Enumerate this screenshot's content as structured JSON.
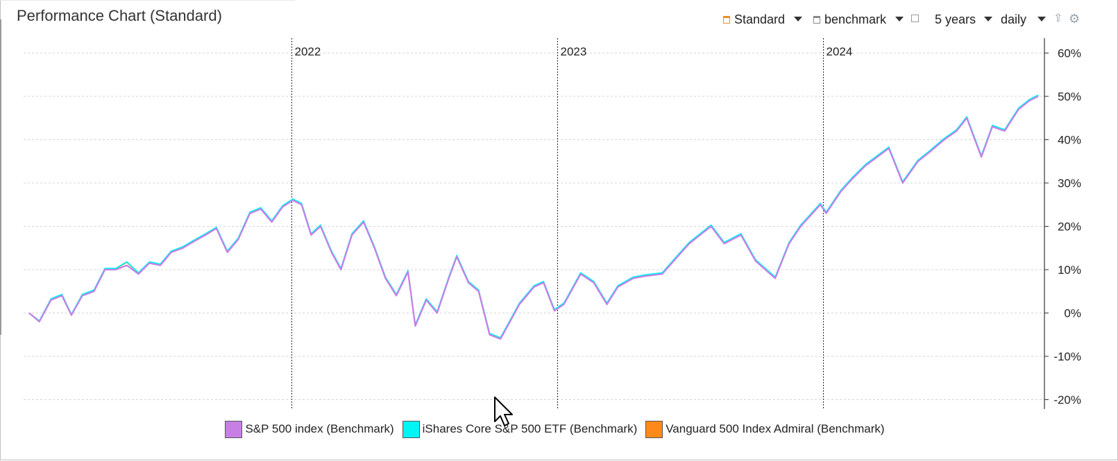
{
  "header": {
    "title": "Performance Chart (Standard)"
  },
  "toolbar": {
    "chart_type": "Standard",
    "compare": "benchmark",
    "period": "5 years",
    "interval": "daily"
  },
  "colors": {
    "sp500": "#c77fe6",
    "ishares": "#00f5f5",
    "vanguard": "#ff8a1a"
  },
  "chart_data": {
    "type": "line",
    "title": "Performance Chart (Standard)",
    "x_range": [
      "2021-01-06",
      "2024-10-22"
    ],
    "ylim": [
      -22,
      62
    ],
    "y_ticks": [
      60,
      50,
      40,
      30,
      20,
      10,
      0,
      -10,
      -20
    ],
    "y_tick_labels": [
      "60%",
      "50%",
      "40%",
      "30%",
      "20%",
      "10%",
      "0%",
      "-10%",
      "-20%"
    ],
    "year_markers": [
      {
        "date": "2022-01-01",
        "label": "2022"
      },
      {
        "date": "2023-01-01",
        "label": "2023"
      },
      {
        "date": "2024-01-01",
        "label": "2024"
      }
    ],
    "legend_position": "bottom",
    "grid": true,
    "series": [
      {
        "name": "S&P 500 index (Benchmark)",
        "color": "#c77fe6",
        "points": [
          [
            "2021-01-06",
            0
          ],
          [
            "2021-01-20",
            -2
          ],
          [
            "2021-02-05",
            3
          ],
          [
            "2021-02-20",
            4
          ],
          [
            "2021-03-05",
            -0.5
          ],
          [
            "2021-03-20",
            4
          ],
          [
            "2021-04-05",
            5
          ],
          [
            "2021-04-20",
            10
          ],
          [
            "2021-05-05",
            10
          ],
          [
            "2021-05-20",
            11
          ],
          [
            "2021-06-05",
            9
          ],
          [
            "2021-06-20",
            11.5
          ],
          [
            "2021-07-05",
            11
          ],
          [
            "2021-07-20",
            14
          ],
          [
            "2021-08-05",
            15
          ],
          [
            "2021-08-20",
            16.5
          ],
          [
            "2021-09-05",
            18
          ],
          [
            "2021-09-20",
            19.5
          ],
          [
            "2021-10-05",
            14
          ],
          [
            "2021-10-20",
            17
          ],
          [
            "2021-11-05",
            23
          ],
          [
            "2021-11-20",
            24
          ],
          [
            "2021-12-05",
            21
          ],
          [
            "2021-12-20",
            24.5
          ],
          [
            "2022-01-03",
            26
          ],
          [
            "2022-01-15",
            25
          ],
          [
            "2022-01-28",
            18
          ],
          [
            "2022-02-10",
            20
          ],
          [
            "2022-02-25",
            14
          ],
          [
            "2022-03-10",
            10
          ],
          [
            "2022-03-25",
            18
          ],
          [
            "2022-04-10",
            21
          ],
          [
            "2022-04-25",
            15
          ],
          [
            "2022-05-10",
            8
          ],
          [
            "2022-05-25",
            4
          ],
          [
            "2022-06-10",
            9.5
          ],
          [
            "2022-06-20",
            -3
          ],
          [
            "2022-07-05",
            3
          ],
          [
            "2022-07-20",
            0
          ],
          [
            "2022-08-05",
            8
          ],
          [
            "2022-08-16",
            13
          ],
          [
            "2022-09-01",
            7
          ],
          [
            "2022-09-15",
            5
          ],
          [
            "2022-09-30",
            -5
          ],
          [
            "2022-10-15",
            -6
          ],
          [
            "2022-10-28",
            -2
          ],
          [
            "2022-11-10",
            2
          ],
          [
            "2022-11-30",
            6
          ],
          [
            "2022-12-13",
            7
          ],
          [
            "2022-12-28",
            0.5
          ],
          [
            "2023-01-10",
            2
          ],
          [
            "2023-02-02",
            9
          ],
          [
            "2023-02-20",
            7
          ],
          [
            "2023-03-10",
            2
          ],
          [
            "2023-03-25",
            6
          ],
          [
            "2023-04-15",
            8
          ],
          [
            "2023-05-01",
            8.5
          ],
          [
            "2023-05-25",
            9
          ],
          [
            "2023-06-15",
            13
          ],
          [
            "2023-07-01",
            16
          ],
          [
            "2023-07-31",
            20
          ],
          [
            "2023-08-18",
            16
          ],
          [
            "2023-09-10",
            18
          ],
          [
            "2023-09-30",
            12
          ],
          [
            "2023-10-27",
            8
          ],
          [
            "2023-11-15",
            16
          ],
          [
            "2023-12-01",
            20
          ],
          [
            "2023-12-28",
            25
          ],
          [
            "2024-01-05",
            23
          ],
          [
            "2024-01-25",
            28
          ],
          [
            "2024-02-10",
            31
          ],
          [
            "2024-02-28",
            34
          ],
          [
            "2024-03-15",
            36
          ],
          [
            "2024-03-31",
            38
          ],
          [
            "2024-04-19",
            30
          ],
          [
            "2024-05-10",
            35
          ],
          [
            "2024-05-25",
            37
          ],
          [
            "2024-06-15",
            40
          ],
          [
            "2024-07-02",
            42
          ],
          [
            "2024-07-16",
            45
          ],
          [
            "2024-08-05",
            36
          ],
          [
            "2024-08-20",
            43
          ],
          [
            "2024-09-06",
            42
          ],
          [
            "2024-09-25",
            47
          ],
          [
            "2024-10-10",
            49
          ],
          [
            "2024-10-22",
            50
          ]
        ]
      },
      {
        "name": "iShares Core S&P 500 ETF (Benchmark)",
        "color": "#00f5f5",
        "points": [
          [
            "2021-01-06",
            0
          ],
          [
            "2021-01-20",
            -1.8
          ],
          [
            "2021-02-05",
            3.3
          ],
          [
            "2021-02-20",
            4.3
          ],
          [
            "2021-03-05",
            -0.3
          ],
          [
            "2021-03-20",
            4.3
          ],
          [
            "2021-04-05",
            5.3
          ],
          [
            "2021-04-20",
            10.3
          ],
          [
            "2021-05-05",
            10.3
          ],
          [
            "2021-05-20",
            11.8
          ],
          [
            "2021-06-05",
            9.3
          ],
          [
            "2021-06-20",
            11.8
          ],
          [
            "2021-07-05",
            11.3
          ],
          [
            "2021-07-20",
            14.3
          ],
          [
            "2021-08-05",
            15.3
          ],
          [
            "2021-08-20",
            16.8
          ],
          [
            "2021-09-05",
            18.3
          ],
          [
            "2021-09-20",
            19.8
          ],
          [
            "2021-10-05",
            14.3
          ],
          [
            "2021-10-20",
            17.3
          ],
          [
            "2021-11-05",
            23.3
          ],
          [
            "2021-11-20",
            24.3
          ],
          [
            "2021-12-05",
            21.3
          ],
          [
            "2021-12-20",
            24.8
          ],
          [
            "2022-01-03",
            26.3
          ],
          [
            "2022-01-15",
            25.3
          ],
          [
            "2022-01-28",
            18.3
          ],
          [
            "2022-02-10",
            20.3
          ],
          [
            "2022-02-25",
            14.3
          ],
          [
            "2022-03-10",
            10.3
          ],
          [
            "2022-03-25",
            18.3
          ],
          [
            "2022-04-10",
            21.3
          ],
          [
            "2022-04-25",
            15.3
          ],
          [
            "2022-05-10",
            8.3
          ],
          [
            "2022-05-25",
            4.3
          ],
          [
            "2022-06-10",
            9.8
          ],
          [
            "2022-06-20",
            -2.7
          ],
          [
            "2022-07-05",
            3.3
          ],
          [
            "2022-07-20",
            0.3
          ],
          [
            "2022-08-05",
            8.3
          ],
          [
            "2022-08-16",
            13.3
          ],
          [
            "2022-09-01",
            7.3
          ],
          [
            "2022-09-15",
            5.3
          ],
          [
            "2022-09-30",
            -4.7
          ],
          [
            "2022-10-15",
            -5.7
          ],
          [
            "2022-10-28",
            -1.7
          ],
          [
            "2022-11-10",
            2.3
          ],
          [
            "2022-11-30",
            6.3
          ],
          [
            "2022-12-13",
            7.3
          ],
          [
            "2022-12-28",
            0.8
          ],
          [
            "2023-01-10",
            2.3
          ],
          [
            "2023-02-02",
            9.3
          ],
          [
            "2023-02-20",
            7.3
          ],
          [
            "2023-03-10",
            2.3
          ],
          [
            "2023-03-25",
            6.3
          ],
          [
            "2023-04-15",
            8.3
          ],
          [
            "2023-05-01",
            8.8
          ],
          [
            "2023-05-25",
            9.3
          ],
          [
            "2023-06-15",
            13.3
          ],
          [
            "2023-07-01",
            16.3
          ],
          [
            "2023-07-31",
            20.3
          ],
          [
            "2023-08-18",
            16.3
          ],
          [
            "2023-09-10",
            18.3
          ],
          [
            "2023-09-30",
            12.3
          ],
          [
            "2023-10-27",
            8.3
          ],
          [
            "2023-11-15",
            16.3
          ],
          [
            "2023-12-01",
            20.3
          ],
          [
            "2023-12-28",
            25.3
          ],
          [
            "2024-01-05",
            23.3
          ],
          [
            "2024-01-25",
            28.3
          ],
          [
            "2024-02-10",
            31.3
          ],
          [
            "2024-02-28",
            34.3
          ],
          [
            "2024-03-15",
            36.3
          ],
          [
            "2024-03-31",
            38.3
          ],
          [
            "2024-04-19",
            30.3
          ],
          [
            "2024-05-10",
            35.3
          ],
          [
            "2024-05-25",
            37.3
          ],
          [
            "2024-06-15",
            40.3
          ],
          [
            "2024-07-02",
            42.3
          ],
          [
            "2024-07-16",
            45.3
          ],
          [
            "2024-08-05",
            36.3
          ],
          [
            "2024-08-20",
            43.3
          ],
          [
            "2024-09-06",
            42.3
          ],
          [
            "2024-09-25",
            47.3
          ],
          [
            "2024-10-10",
            49.3
          ],
          [
            "2024-10-22",
            50.3
          ]
        ]
      },
      {
        "name": "Vanguard 500 Index Admiral (Benchmark)",
        "color": "#ff8a1a",
        "points": [
          [
            "2021-01-06",
            0
          ],
          [
            "2021-01-20",
            -1.9
          ],
          [
            "2021-02-05",
            3.2
          ],
          [
            "2021-02-20",
            4.2
          ],
          [
            "2021-03-05",
            -0.4
          ],
          [
            "2021-03-20",
            4.2
          ],
          [
            "2021-04-05",
            5.2
          ],
          [
            "2021-04-20",
            10.2
          ],
          [
            "2021-05-05",
            10.2
          ],
          [
            "2021-05-20",
            11.7
          ],
          [
            "2021-06-05",
            9.2
          ],
          [
            "2021-06-20",
            11.7
          ],
          [
            "2021-07-05",
            11.2
          ],
          [
            "2021-07-20",
            14.2
          ],
          [
            "2021-08-05",
            15.2
          ],
          [
            "2021-08-20",
            16.7
          ],
          [
            "2021-09-05",
            18.2
          ],
          [
            "2021-09-20",
            19.7
          ],
          [
            "2021-10-05",
            14.2
          ],
          [
            "2021-10-20",
            17.2
          ],
          [
            "2021-11-05",
            23.2
          ],
          [
            "2021-11-20",
            24.2
          ],
          [
            "2021-12-05",
            21.2
          ],
          [
            "2021-12-20",
            24.7
          ],
          [
            "2022-01-03",
            26.2
          ],
          [
            "2022-01-15",
            25.2
          ],
          [
            "2022-01-28",
            18.2
          ],
          [
            "2022-02-10",
            20.2
          ],
          [
            "2022-02-25",
            14.2
          ],
          [
            "2022-03-10",
            10.2
          ],
          [
            "2022-03-25",
            18.2
          ],
          [
            "2022-04-10",
            21.2
          ],
          [
            "2022-04-25",
            15.2
          ],
          [
            "2022-05-10",
            8.2
          ],
          [
            "2022-05-25",
            4.2
          ],
          [
            "2022-06-10",
            9.7
          ],
          [
            "2022-06-20",
            -2.8
          ],
          [
            "2022-07-05",
            3.2
          ],
          [
            "2022-07-20",
            0.2
          ],
          [
            "2022-08-05",
            8.2
          ],
          [
            "2022-08-16",
            13.2
          ],
          [
            "2022-09-01",
            7.2
          ],
          [
            "2022-09-15",
            5.2
          ],
          [
            "2022-09-30",
            -4.8
          ],
          [
            "2022-10-15",
            -5.8
          ],
          [
            "2022-10-28",
            -1.8
          ],
          [
            "2022-11-10",
            2.2
          ],
          [
            "2022-11-30",
            6.2
          ],
          [
            "2022-12-13",
            7.2
          ],
          [
            "2022-12-28",
            0.7
          ],
          [
            "2023-01-10",
            2.2
          ],
          [
            "2023-02-02",
            9.2
          ],
          [
            "2023-02-20",
            7.2
          ],
          [
            "2023-03-10",
            2.2
          ],
          [
            "2023-03-25",
            6.2
          ],
          [
            "2023-04-15",
            8.2
          ],
          [
            "2023-05-01",
            8.7
          ],
          [
            "2023-05-25",
            9.2
          ],
          [
            "2023-06-15",
            13.2
          ],
          [
            "2023-07-01",
            16.2
          ],
          [
            "2023-07-31",
            20.2
          ],
          [
            "2023-08-18",
            16.2
          ],
          [
            "2023-09-10",
            18.2
          ],
          [
            "2023-09-30",
            12.2
          ],
          [
            "2023-10-27",
            8.2
          ],
          [
            "2023-11-15",
            16.2
          ],
          [
            "2023-12-01",
            20.2
          ],
          [
            "2023-12-28",
            25.2
          ],
          [
            "2024-01-05",
            23.2
          ],
          [
            "2024-01-25",
            28.2
          ],
          [
            "2024-02-10",
            31.2
          ],
          [
            "2024-02-28",
            34.2
          ],
          [
            "2024-03-15",
            36.2
          ],
          [
            "2024-03-31",
            38.2
          ],
          [
            "2024-04-19",
            30.2
          ],
          [
            "2024-05-10",
            35.2
          ],
          [
            "2024-05-25",
            37.2
          ],
          [
            "2024-06-15",
            40.2
          ],
          [
            "2024-07-02",
            42.2
          ],
          [
            "2024-07-16",
            45.2
          ],
          [
            "2024-08-05",
            36.2
          ],
          [
            "2024-08-20",
            43.2
          ],
          [
            "2024-09-06",
            42.2
          ],
          [
            "2024-09-25",
            47.2
          ],
          [
            "2024-10-10",
            49.2
          ],
          [
            "2024-10-22",
            50.2
          ]
        ]
      }
    ]
  }
}
